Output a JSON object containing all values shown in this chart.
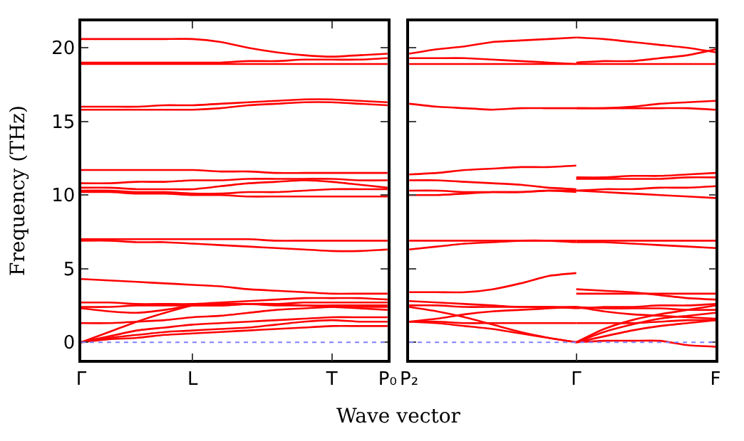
{
  "chart_data": [
    {
      "type": "line",
      "xlabel": "Wave vector",
      "ylabel": "Frequency (THz)",
      "categories": [
        "Γ",
        null,
        null,
        null,
        "L",
        null,
        null,
        null,
        null,
        "T",
        null,
        "P₀"
      ],
      "ylim": [
        -1.2,
        21.8
      ],
      "yticks": [
        0,
        5,
        10,
        15,
        20
      ],
      "line_style": "solid",
      "marker": "none",
      "ref_lines": [
        {
          "axis": "y",
          "value": 0,
          "color": "#8080ff",
          "line_style": "dotted"
        }
      ],
      "series": [
        {
          "color": "#ff0000",
          "values": [
            20.6,
            20.6,
            20.6,
            20.6,
            20.6,
            20.4,
            20.0,
            19.7,
            19.5,
            19.4,
            19.5,
            19.6
          ]
        },
        {
          "color": "#ff0000",
          "values": [
            19.0,
            19.0,
            19.0,
            19.0,
            19.0,
            19.0,
            19.1,
            19.1,
            19.2,
            19.2,
            19.2,
            19.3
          ]
        },
        {
          "color": "#ff0000",
          "values": [
            18.9,
            18.9,
            18.9,
            18.9,
            18.9,
            18.9,
            18.9,
            18.9,
            18.9,
            18.9,
            18.9,
            18.9
          ]
        },
        {
          "color": "#ff0000",
          "values": [
            16.0,
            16.0,
            16.0,
            16.1,
            16.1,
            16.2,
            16.3,
            16.4,
            16.5,
            16.5,
            16.4,
            16.3
          ]
        },
        {
          "color": "#ff0000",
          "values": [
            15.8,
            15.8,
            15.8,
            15.8,
            15.8,
            15.9,
            16.1,
            16.2,
            16.3,
            16.3,
            16.2,
            16.1
          ]
        },
        {
          "color": "#ff0000",
          "values": [
            11.7,
            11.7,
            11.7,
            11.7,
            11.7,
            11.6,
            11.6,
            11.5,
            11.5,
            11.5,
            11.5,
            11.5
          ]
        },
        {
          "color": "#ff0000",
          "values": [
            10.8,
            10.8,
            10.9,
            10.9,
            11.0,
            11.0,
            11.1,
            11.1,
            11.1,
            11.1,
            11.0,
            11.0
          ]
        },
        {
          "color": "#ff0000",
          "values": [
            10.5,
            10.5,
            10.4,
            10.4,
            10.4,
            10.6,
            10.8,
            10.9,
            11.0,
            10.9,
            10.7,
            10.5
          ]
        },
        {
          "color": "#ff0000",
          "values": [
            10.3,
            10.3,
            10.2,
            10.2,
            10.1,
            10.1,
            10.2,
            10.2,
            10.3,
            10.4,
            10.4,
            10.4
          ]
        },
        {
          "color": "#ff0000",
          "values": [
            10.2,
            10.2,
            10.1,
            10.1,
            10.0,
            10.0,
            9.9,
            9.9,
            9.9,
            9.9,
            9.9,
            9.9
          ]
        },
        {
          "color": "#ff0000",
          "values": [
            7.0,
            7.0,
            7.0,
            7.0,
            7.0,
            7.0,
            7.0,
            6.9,
            6.9,
            6.9,
            6.9,
            6.9
          ]
        },
        {
          "color": "#ff0000",
          "values": [
            6.9,
            6.9,
            6.8,
            6.8,
            6.7,
            6.6,
            6.5,
            6.4,
            6.3,
            6.2,
            6.2,
            6.3
          ]
        },
        {
          "color": "#ff0000",
          "values": [
            4.3,
            4.2,
            4.1,
            4.0,
            3.9,
            3.8,
            3.6,
            3.5,
            3.4,
            3.3,
            3.3,
            3.3
          ]
        },
        {
          "color": "#ff0000",
          "values": [
            2.7,
            2.7,
            2.6,
            2.6,
            2.6,
            2.7,
            2.8,
            2.9,
            3.0,
            3.0,
            3.0,
            2.9
          ]
        },
        {
          "color": "#ff0000",
          "values": [
            2.4,
            2.4,
            2.5,
            2.5,
            2.5,
            2.5,
            2.6,
            2.6,
            2.7,
            2.7,
            2.7,
            2.7
          ]
        },
        {
          "color": "#ff0000",
          "values": [
            2.3,
            2.1,
            2.0,
            2.2,
            2.5,
            2.5,
            2.6,
            2.6,
            2.5,
            2.5,
            2.5,
            2.5
          ]
        },
        {
          "color": "#ff0000",
          "values": [
            1.3,
            1.3,
            1.4,
            1.5,
            1.7,
            1.8,
            2.0,
            2.2,
            2.3,
            2.4,
            2.4,
            2.4
          ]
        },
        {
          "color": "#ff0000",
          "values": [
            0,
            0.7,
            1.4,
            2.0,
            2.5,
            2.6,
            2.6,
            2.5,
            2.5,
            2.4,
            2.3,
            2.2
          ]
        },
        {
          "color": "#ff0000",
          "values": [
            0,
            0.4,
            0.8,
            1.0,
            1.2,
            1.3,
            1.4,
            1.5,
            1.6,
            1.7,
            1.7,
            1.7
          ]
        },
        {
          "color": "#ff0000",
          "values": [
            0,
            0.3,
            0.5,
            0.7,
            0.8,
            0.9,
            1.0,
            1.2,
            1.4,
            1.5,
            1.4,
            1.4
          ]
        },
        {
          "color": "#ff0000",
          "values": [
            0,
            0.2,
            0.3,
            0.5,
            0.6,
            0.7,
            0.8,
            0.9,
            1.0,
            1.1,
            1.1,
            1.1
          ]
        }
      ]
    },
    {
      "type": "line",
      "categories": [
        "P₂",
        null,
        null,
        null,
        null,
        null,
        "Γ",
        null,
        null,
        null,
        null,
        "F"
      ],
      "ylim": [
        -1.2,
        21.8
      ],
      "yticks": [
        0,
        5,
        10,
        15,
        20
      ],
      "tick_labels": "x",
      "line_style": "solid",
      "marker": "none",
      "ref_lines": [
        {
          "axis": "y",
          "value": 0,
          "color": "#8080ff",
          "line_style": "dotted"
        }
      ],
      "series": [
        {
          "color": "#ff0000",
          "values": [
            19.6,
            19.9,
            20.1,
            20.4,
            20.5,
            20.6,
            20.7,
            null,
            null,
            null,
            null,
            null
          ]
        },
        {
          "color": "#ff0000",
          "values": [
            null,
            null,
            null,
            null,
            null,
            null,
            20.7,
            20.6,
            20.4,
            20.2,
            20.0,
            19.7
          ]
        },
        {
          "color": "#ff0000",
          "values": [
            19.3,
            19.3,
            19.3,
            19.2,
            19.1,
            19.0,
            18.9,
            null,
            null,
            null,
            null,
            null
          ]
        },
        {
          "color": "#ff0000",
          "values": [
            null,
            null,
            null,
            null,
            null,
            null,
            19.0,
            19.1,
            19.1,
            19.3,
            19.5,
            19.9
          ]
        },
        {
          "color": "#ff0000",
          "values": [
            18.9,
            18.9,
            18.9,
            18.9,
            18.9,
            18.9,
            18.9,
            null,
            null,
            null,
            null,
            null
          ]
        },
        {
          "color": "#ff0000",
          "values": [
            null,
            null,
            null,
            null,
            null,
            null,
            18.9,
            18.9,
            18.9,
            18.9,
            18.9,
            18.9
          ]
        },
        {
          "color": "#ff0000",
          "values": [
            16.2,
            16.0,
            15.9,
            15.8,
            15.9,
            15.9,
            15.9,
            null,
            null,
            null,
            null,
            null
          ]
        },
        {
          "color": "#ff0000",
          "values": [
            null,
            null,
            null,
            null,
            null,
            null,
            15.9,
            15.9,
            16.0,
            16.2,
            16.3,
            16.4
          ]
        },
        {
          "color": "#ff0000",
          "values": [
            null,
            null,
            null,
            null,
            null,
            null,
            15.9,
            15.9,
            15.9,
            15.9,
            15.9,
            15.8
          ]
        },
        {
          "color": "#ff0000",
          "values": [
            11.4,
            11.5,
            11.7,
            11.8,
            11.9,
            11.9,
            12.0,
            null,
            null,
            null,
            null,
            null
          ]
        },
        {
          "color": "#ff0000",
          "values": [
            null,
            null,
            null,
            null,
            null,
            null,
            11.2,
            11.2,
            11.3,
            11.3,
            11.4,
            11.5
          ]
        },
        {
          "color": "#ff0000",
          "values": [
            11.0,
            11.0,
            10.9,
            10.8,
            10.7,
            10.5,
            10.4,
            null,
            null,
            null,
            null,
            null
          ]
        },
        {
          "color": "#ff0000",
          "values": [
            null,
            null,
            null,
            null,
            null,
            null,
            11.1,
            11.1,
            11.1,
            11.1,
            11.2,
            11.2
          ]
        },
        {
          "color": "#ff0000",
          "values": [
            10.3,
            10.3,
            10.2,
            10.2,
            10.2,
            10.3,
            10.3,
            null,
            null,
            null,
            null,
            null
          ]
        },
        {
          "color": "#ff0000",
          "values": [
            null,
            null,
            null,
            null,
            null,
            null,
            10.3,
            10.4,
            10.4,
            10.5,
            10.5,
            10.6
          ]
        },
        {
          "color": "#ff0000",
          "values": [
            10.0,
            10.0,
            10.1,
            10.2,
            10.2,
            10.3,
            10.2,
            null,
            null,
            null,
            null,
            null
          ]
        },
        {
          "color": "#ff0000",
          "values": [
            null,
            null,
            null,
            null,
            null,
            null,
            10.3,
            10.2,
            10.1,
            10.0,
            9.9,
            9.8
          ]
        },
        {
          "color": "#ff0000",
          "values": [
            6.9,
            6.9,
            6.9,
            6.9,
            6.9,
            6.9,
            6.9,
            null,
            null,
            null,
            null,
            null
          ]
        },
        {
          "color": "#ff0000",
          "values": [
            null,
            null,
            null,
            null,
            null,
            null,
            6.9,
            6.9,
            6.9,
            6.9,
            6.9,
            6.9
          ]
        },
        {
          "color": "#ff0000",
          "values": [
            6.3,
            6.5,
            6.7,
            6.8,
            6.9,
            6.9,
            6.8,
            null,
            null,
            null,
            null,
            null
          ]
        },
        {
          "color": "#ff0000",
          "values": [
            null,
            null,
            null,
            null,
            null,
            null,
            6.8,
            6.8,
            6.7,
            6.6,
            6.5,
            6.4
          ]
        },
        {
          "color": "#ff0000",
          "values": [
            3.4,
            3.4,
            3.4,
            3.6,
            4.0,
            4.5,
            4.7,
            null,
            null,
            null,
            null,
            null
          ]
        },
        {
          "color": "#ff0000",
          "values": [
            null,
            null,
            null,
            null,
            null,
            null,
            3.6,
            3.5,
            3.4,
            3.2,
            3.0,
            2.9
          ]
        },
        {
          "color": "#ff0000",
          "values": [
            null,
            null,
            null,
            null,
            null,
            null,
            3.3,
            3.3,
            3.3,
            3.3,
            3.3,
            3.3
          ]
        },
        {
          "color": "#ff0000",
          "values": [
            2.8,
            2.7,
            2.6,
            2.5,
            2.4,
            2.4,
            2.3,
            null,
            null,
            null,
            null,
            null
          ]
        },
        {
          "color": "#ff0000",
          "values": [
            null,
            null,
            null,
            null,
            null,
            null,
            2.3,
            2.4,
            2.4,
            2.5,
            2.5,
            2.6
          ]
        },
        {
          "color": "#ff0000",
          "values": [
            2.5,
            2.5,
            2.4,
            2.4,
            2.4,
            2.4,
            2.4,
            null,
            null,
            null,
            null,
            null
          ]
        },
        {
          "color": "#ff0000",
          "values": [
            null,
            null,
            null,
            null,
            null,
            null,
            2.4,
            2.3,
            2.3,
            2.3,
            2.2,
            2.2
          ]
        },
        {
          "color": "#ff0000",
          "values": [
            2.4,
            2.1,
            1.7,
            1.2,
            0.7,
            0.3,
            0,
            null,
            null,
            null,
            null,
            null
          ]
        },
        {
          "color": "#ff0000",
          "values": [
            null,
            null,
            null,
            null,
            null,
            null,
            0,
            0.9,
            1.5,
            1.9,
            2.2,
            2.5
          ]
        },
        {
          "color": "#ff0000",
          "values": [
            1.4,
            1.6,
            1.9,
            2.1,
            2.2,
            2.3,
            2.4,
            null,
            null,
            null,
            null,
            null
          ]
        },
        {
          "color": "#ff0000",
          "values": [
            null,
            null,
            null,
            null,
            null,
            null,
            2.4,
            2.1,
            1.9,
            1.8,
            1.7,
            1.6
          ]
        },
        {
          "color": "#ff0000",
          "values": [
            1.4,
            1.3,
            1.1,
            0.9,
            0.6,
            0.3,
            0,
            null,
            null,
            null,
            null,
            null
          ]
        },
        {
          "color": "#ff0000",
          "values": [
            null,
            null,
            null,
            null,
            null,
            null,
            0,
            0.7,
            1.2,
            1.6,
            1.8,
            2.0
          ]
        },
        {
          "color": "#ff0000",
          "values": [
            1.4,
            1.4,
            1.3,
            1.3,
            1.3,
            1.3,
            1.3,
            null,
            null,
            null,
            null,
            null
          ]
        },
        {
          "color": "#ff0000",
          "values": [
            null,
            null,
            null,
            null,
            null,
            null,
            1.3,
            1.3,
            1.3,
            1.4,
            1.5,
            1.5
          ]
        },
        {
          "color": "#ff0000",
          "values": [
            null,
            null,
            null,
            null,
            null,
            null,
            0,
            0.1,
            0.1,
            0.1,
            -0.2,
            -0.3
          ]
        },
        {
          "color": "#ff0000",
          "values": [
            null,
            null,
            null,
            null,
            null,
            null,
            0,
            0.4,
            0.8,
            1.1,
            1.3,
            1.5
          ]
        }
      ]
    }
  ]
}
